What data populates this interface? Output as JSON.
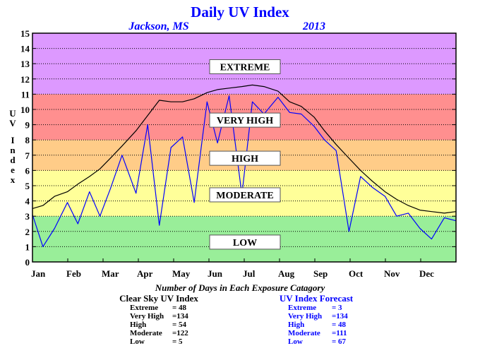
{
  "chart_data": {
    "type": "line",
    "title": "Daily UV Index",
    "location": "Jackson, MS",
    "year": "2013",
    "ylabel": "UV Index",
    "ylim": [
      0,
      15
    ],
    "yticks": [
      "0",
      "1",
      "2",
      "3",
      "4",
      "5",
      "6",
      "7",
      "8",
      "9",
      "10",
      "11",
      "12",
      "13",
      "14",
      "15"
    ],
    "months": [
      "Jan",
      "Feb",
      "Mar",
      "Apr",
      "May",
      "Jun",
      "Jul",
      "Aug",
      "Sep",
      "Oct",
      "Nov",
      "Dec"
    ],
    "grid": true,
    "bands": [
      {
        "label": "LOW",
        "from": 0,
        "to": 3,
        "color": "#99ee99",
        "label_at": 1.3
      },
      {
        "label": "MODERATE",
        "from": 3,
        "to": 6,
        "color": "#ffff99",
        "label_at": 4.4
      },
      {
        "label": "HIGH",
        "from": 6,
        "to": 8,
        "color": "#ffcc88",
        "label_at": 6.8
      },
      {
        "label": "VERY HIGH",
        "from": 8,
        "to": 11,
        "color": "#ff8f8f",
        "label_at": 9.3
      },
      {
        "label": "EXTREME",
        "from": 11,
        "to": 15,
        "color": "#dd99ff",
        "label_at": 12.8
      }
    ],
    "series": [
      {
        "color": "#000000",
        "x": [
          1,
          10,
          20,
          31,
          40,
          50,
          59,
          68,
          78,
          90,
          100,
          110,
          120,
          130,
          140,
          151,
          160,
          170,
          181,
          190,
          200,
          212,
          222,
          232,
          243,
          252,
          262,
          273,
          283,
          293,
          304,
          314,
          324,
          334,
          344,
          355,
          365
        ],
        "values": [
          3.5,
          3.7,
          4.3,
          4.6,
          5.1,
          5.6,
          6.1,
          6.8,
          7.6,
          8.6,
          9.6,
          10.6,
          10.5,
          10.5,
          10.7,
          11.1,
          11.3,
          11.4,
          11.5,
          11.6,
          11.5,
          11.2,
          10.5,
          10.2,
          9.5,
          8.6,
          7.7,
          6.8,
          6.0,
          5.3,
          4.6,
          4.1,
          3.7,
          3.4,
          3.3,
          3.2,
          3.3
        ]
      },
      {
        "color": "#0000ff",
        "x": [
          1,
          10,
          20,
          31,
          40,
          50,
          59,
          68,
          78,
          90,
          100,
          110,
          120,
          130,
          140,
          151,
          160,
          170,
          181,
          190,
          200,
          212,
          222,
          232,
          243,
          252,
          262,
          273,
          283,
          293,
          304,
          314,
          324,
          334,
          344,
          355,
          365
        ],
        "values": [
          3.1,
          1.0,
          2.2,
          3.9,
          2.5,
          4.6,
          3.0,
          4.8,
          7.0,
          4.5,
          9.0,
          2.4,
          7.5,
          8.2,
          3.9,
          10.5,
          7.8,
          10.9,
          4.4,
          10.5,
          9.7,
          10.8,
          9.8,
          9.7,
          8.9,
          8.0,
          7.3,
          2.0,
          5.6,
          4.9,
          4.3,
          3.0,
          3.2,
          2.2,
          1.5,
          2.9,
          2.7
        ]
      }
    ],
    "caption": "Number of Days in Each Exposure Catagory",
    "clear_sky": {
      "heading": "Clear Sky UV Index",
      "rows": [
        {
          "label": "Extreme",
          "value": "= 48"
        },
        {
          "label": "Very High",
          "value": "=134"
        },
        {
          "label": "High",
          "value": "= 54"
        },
        {
          "label": "Moderate",
          "value": "=122"
        },
        {
          "label": "Low",
          "value": "= 5"
        }
      ]
    },
    "forecast": {
      "heading": "UV Index Forecast",
      "rows": [
        {
          "label": "Extreme",
          "value": "= 3"
        },
        {
          "label": "Very High",
          "value": "=134"
        },
        {
          "label": "High",
          "value": "= 48"
        },
        {
          "label": "Moderate",
          "value": "=111"
        },
        {
          "label": "Low",
          "value": "= 67"
        }
      ]
    }
  }
}
